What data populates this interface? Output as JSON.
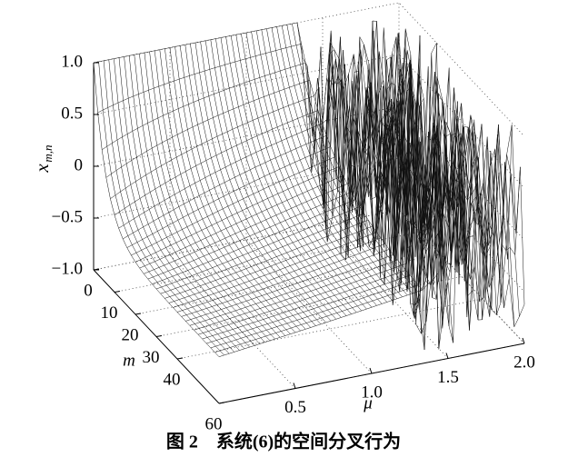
{
  "chart_data": {
    "type": "surface",
    "caption": "图 2　系统(6)的空间分叉行为",
    "zlabel": {
      "base": "x",
      "sub": "m,n"
    },
    "xlabel": "μ",
    "ylabel": "m",
    "zlim": [
      -1,
      1
    ],
    "zticks": [
      {
        "value": 1,
        "label": "1.0"
      },
      0.5,
      0,
      {
        "value": -0.5,
        "label": "−0.5"
      },
      {
        "value": -1,
        "label": "−1.0"
      }
    ],
    "xlim": [
      0,
      2
    ],
    "xticks": [
      0.5,
      {
        "value": 1,
        "label": "1.0"
      },
      1.5,
      {
        "value": 2,
        "label": "2.0"
      }
    ],
    "ylim": [
      0,
      60
    ],
    "yticks": [
      0,
      10,
      20,
      30,
      40,
      60
    ],
    "grid": true,
    "color": "#111111"
  }
}
